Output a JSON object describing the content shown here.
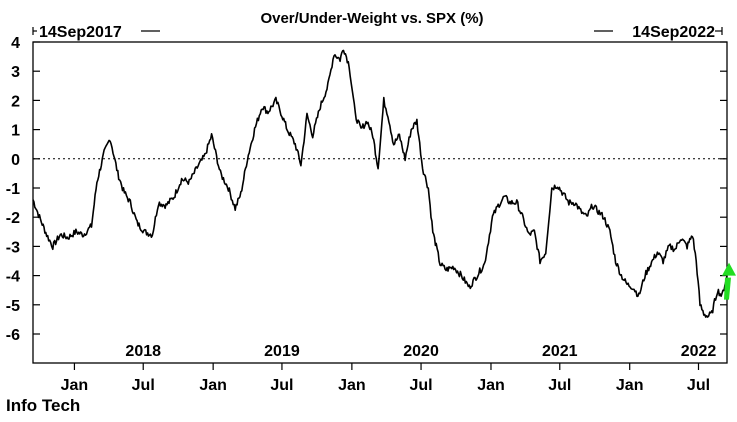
{
  "chart_data": {
    "type": "line",
    "title": "Over/Under-Weight vs. SPX (%)",
    "range_start_label": "14Sep2017",
    "range_end_label": "14Sep2022",
    "series_label": "Info Tech",
    "ylim": [
      -6.9,
      4
    ],
    "y_ticks": [
      4,
      3,
      2,
      1,
      0,
      -1,
      -2,
      -3,
      -4,
      -5,
      -6
    ],
    "y_tick_labels": [
      "4",
      "3",
      "2",
      "1",
      "0",
      "-1",
      "-2",
      "-3",
      "-4",
      "-5",
      "-6"
    ],
    "xlim": [
      "2017-09-14",
      "2022-09-14"
    ],
    "year_labels": [
      {
        "label": "2018",
        "date": "2018-07-01"
      },
      {
        "label": "2019",
        "date": "2019-07-01"
      },
      {
        "label": "2020",
        "date": "2020-07-01"
      },
      {
        "label": "2021",
        "date": "2021-07-01"
      },
      {
        "label": "2022",
        "date": "2022-07-01"
      }
    ],
    "month_ticks": [
      {
        "label": "Jan",
        "date": "2018-01-01"
      },
      {
        "label": "Jul",
        "date": "2018-07-01"
      },
      {
        "label": "Jan",
        "date": "2019-01-01"
      },
      {
        "label": "Jul",
        "date": "2019-07-01"
      },
      {
        "label": "Jan",
        "date": "2020-01-01"
      },
      {
        "label": "Jul",
        "date": "2020-07-01"
      },
      {
        "label": "Jan",
        "date": "2021-01-01"
      },
      {
        "label": "Jul",
        "date": "2021-07-01"
      },
      {
        "label": "Jan",
        "date": "2022-01-01"
      },
      {
        "label": "Jul",
        "date": "2022-07-01"
      }
    ],
    "zero_line": "dotted",
    "series": [
      {
        "points": [
          [
            "2017-09-14",
            -1.4
          ],
          [
            "2017-10-01",
            -2.0
          ],
          [
            "2017-10-20",
            -2.6
          ],
          [
            "2017-11-05",
            -3.0
          ],
          [
            "2017-11-25",
            -2.6
          ],
          [
            "2017-12-15",
            -2.7
          ],
          [
            "2018-01-05",
            -2.5
          ],
          [
            "2018-01-25",
            -2.6
          ],
          [
            "2018-02-15",
            -2.3
          ],
          [
            "2018-03-01",
            -0.8
          ],
          [
            "2018-03-20",
            0.2
          ],
          [
            "2018-04-05",
            0.7
          ],
          [
            "2018-04-25",
            -0.5
          ],
          [
            "2018-05-10",
            -1.1
          ],
          [
            "2018-05-28",
            -1.5
          ],
          [
            "2018-06-15",
            -2.2
          ],
          [
            "2018-07-05",
            -2.5
          ],
          [
            "2018-07-25",
            -2.6
          ],
          [
            "2018-08-10",
            -1.5
          ],
          [
            "2018-08-30",
            -1.6
          ],
          [
            "2018-09-20",
            -1.3
          ],
          [
            "2018-10-10",
            -0.7
          ],
          [
            "2018-10-30",
            -0.8
          ],
          [
            "2018-11-20",
            -0.3
          ],
          [
            "2018-12-10",
            0.1
          ],
          [
            "2018-12-28",
            0.8
          ],
          [
            "2019-01-20",
            -0.5
          ],
          [
            "2019-02-10",
            -1.0
          ],
          [
            "2019-02-28",
            -1.7
          ],
          [
            "2019-03-15",
            -1.2
          ],
          [
            "2019-04-01",
            0.0
          ],
          [
            "2019-04-20",
            1.0
          ],
          [
            "2019-05-10",
            1.8
          ],
          [
            "2019-05-25",
            1.6
          ],
          [
            "2019-06-15",
            2.0
          ],
          [
            "2019-07-01",
            1.5
          ],
          [
            "2019-07-15",
            1.0
          ],
          [
            "2019-08-05",
            0.5
          ],
          [
            "2019-08-20",
            -0.2
          ],
          [
            "2019-09-05",
            1.5
          ],
          [
            "2019-09-20",
            0.8
          ],
          [
            "2019-10-10",
            1.8
          ],
          [
            "2019-10-30",
            2.5
          ],
          [
            "2019-11-15",
            3.6
          ],
          [
            "2019-12-01",
            3.4
          ],
          [
            "2019-12-10",
            3.8
          ],
          [
            "2019-12-25",
            3.2
          ],
          [
            "2020-01-10",
            1.5
          ],
          [
            "2020-01-25",
            1.0
          ],
          [
            "2020-02-10",
            1.3
          ],
          [
            "2020-02-25",
            0.8
          ],
          [
            "2020-03-10",
            -0.3
          ],
          [
            "2020-03-25",
            2.0
          ],
          [
            "2020-04-05",
            1.5
          ],
          [
            "2020-04-20",
            0.5
          ],
          [
            "2020-05-05",
            0.8
          ],
          [
            "2020-05-20",
            0.0
          ],
          [
            "2020-06-05",
            1.0
          ],
          [
            "2020-06-20",
            1.3
          ],
          [
            "2020-07-05",
            -0.3
          ],
          [
            "2020-07-20",
            -1.0
          ],
          [
            "2020-08-01",
            -2.5
          ],
          [
            "2020-08-10",
            -3.0
          ],
          [
            "2020-08-20",
            -3.6
          ],
          [
            "2020-09-05",
            -3.8
          ],
          [
            "2020-09-25",
            -3.7
          ],
          [
            "2020-10-15",
            -4.0
          ],
          [
            "2020-11-05",
            -4.4
          ],
          [
            "2020-11-25",
            -4.0
          ],
          [
            "2020-12-15",
            -3.6
          ],
          [
            "2021-01-05",
            -2.0
          ],
          [
            "2021-01-20",
            -1.6
          ],
          [
            "2021-02-05",
            -1.3
          ],
          [
            "2021-02-20",
            -1.5
          ],
          [
            "2021-03-10",
            -1.5
          ],
          [
            "2021-03-25",
            -2.0
          ],
          [
            "2021-04-10",
            -2.6
          ],
          [
            "2021-04-25",
            -2.5
          ],
          [
            "2021-05-10",
            -3.5
          ],
          [
            "2021-05-25",
            -3.2
          ],
          [
            "2021-06-10",
            -1.0
          ],
          [
            "2021-06-25",
            -0.9
          ],
          [
            "2021-07-10",
            -1.2
          ],
          [
            "2021-07-25",
            -1.5
          ],
          [
            "2021-08-10",
            -1.5
          ],
          [
            "2021-08-25",
            -1.8
          ],
          [
            "2021-09-10",
            -2.0
          ],
          [
            "2021-09-25",
            -1.6
          ],
          [
            "2021-10-10",
            -1.8
          ],
          [
            "2021-10-25",
            -2.0
          ],
          [
            "2021-11-10",
            -2.5
          ],
          [
            "2021-11-25",
            -3.5
          ],
          [
            "2021-12-10",
            -4.0
          ],
          [
            "2021-12-25",
            -4.3
          ],
          [
            "2022-01-10",
            -4.4
          ],
          [
            "2022-01-25",
            -4.7
          ],
          [
            "2022-02-10",
            -4.0
          ],
          [
            "2022-02-25",
            -3.6
          ],
          [
            "2022-03-15",
            -3.2
          ],
          [
            "2022-03-30",
            -3.5
          ],
          [
            "2022-04-15",
            -3.0
          ],
          [
            "2022-05-01",
            -3.1
          ],
          [
            "2022-05-15",
            -2.7
          ],
          [
            "2022-06-01",
            -3.0
          ],
          [
            "2022-06-15",
            -2.6
          ],
          [
            "2022-06-25",
            -3.5
          ],
          [
            "2022-07-05",
            -5.0
          ],
          [
            "2022-07-15",
            -5.3
          ],
          [
            "2022-07-25",
            -5.4
          ],
          [
            "2022-08-05",
            -5.3
          ],
          [
            "2022-08-20",
            -4.5
          ],
          [
            "2022-09-01",
            -4.7
          ],
          [
            "2022-09-14",
            -4.0
          ]
        ]
      }
    ],
    "marker_color": "#22dd22",
    "line_color": "#000000"
  }
}
